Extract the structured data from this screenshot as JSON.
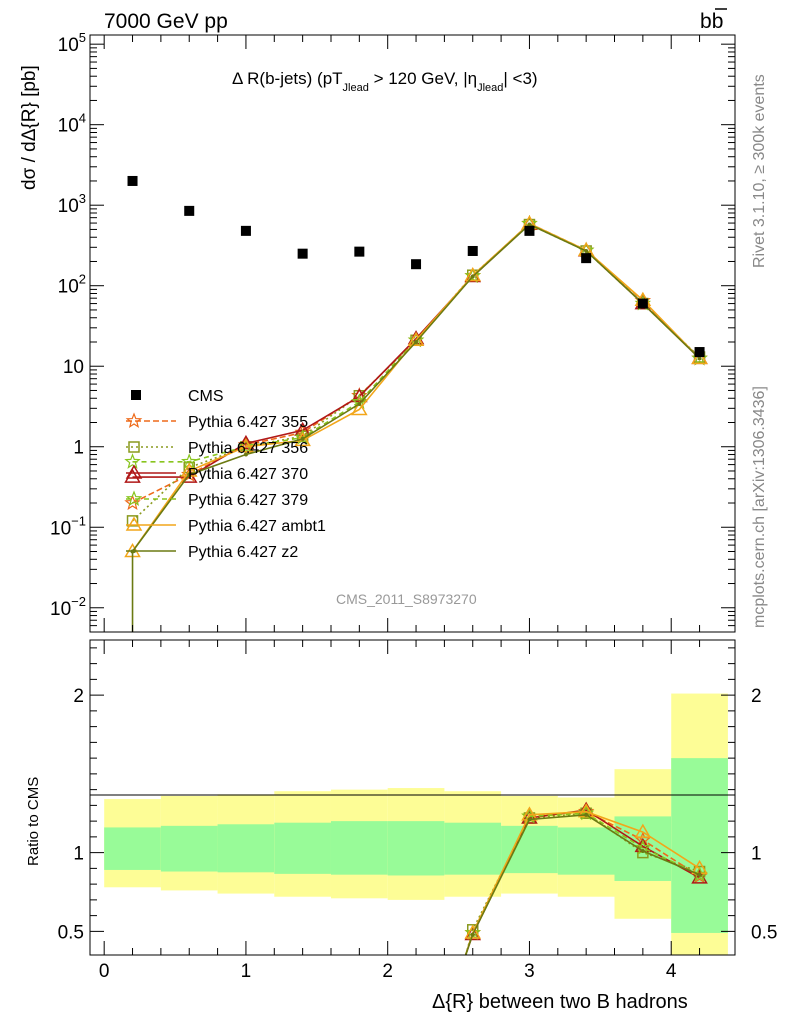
{
  "header": {
    "left": "7000 GeV pp",
    "right": "b",
    "right_bar": "b"
  },
  "chart_data": [
    {
      "type": "line",
      "title": "Δ R(b-jets) (pT",
      "title_parts": {
        "main": "Δ R(b-jets) (pT",
        "sub1": "Jlead",
        "mid": " >  120 GeV, |η",
        "sub2": "Jlead",
        "end": "| <3)"
      },
      "ylabel": "dσ / dΔ{R} [pb]",
      "y_scale": "log",
      "ylim": [
        0.005,
        130000
      ],
      "xlim": [
        -0.1,
        4.45
      ],
      "y_ticks": [
        {
          "v": 0.01,
          "label": "10",
          "exp": "−2"
        },
        {
          "v": 0.1,
          "label": "10",
          "exp": "−1"
        },
        {
          "v": 1,
          "label": "1",
          "exp": ""
        },
        {
          "v": 10,
          "label": "10",
          "exp": ""
        },
        {
          "v": 100,
          "label": "10",
          "exp": "2"
        },
        {
          "v": 1000,
          "label": "10",
          "exp": "3"
        },
        {
          "v": 10000,
          "label": "10",
          "exp": "4"
        },
        {
          "v": 100000,
          "label": "10",
          "exp": "5"
        }
      ],
      "x": [
        0.2,
        0.6,
        1.0,
        1.4,
        1.8,
        2.2,
        2.6,
        3.0,
        3.4,
        3.8,
        4.2
      ],
      "cms": [
        2000,
        850,
        480,
        250,
        265,
        185,
        270,
        480,
        220,
        60,
        15
      ],
      "series": [
        {
          "name": "Pythia 6.427 355",
          "color": "#ee6a1a",
          "marker": "star",
          "dash": "6,3",
          "values": [
            0.2,
            0.45,
            1.05,
            1.5,
            4.3,
            21,
            132,
            590,
            275,
            65,
            12.5
          ]
        },
        {
          "name": "Pythia 6.427 356",
          "color": "#8a9a1e",
          "marker": "square",
          "dash": "2,3",
          "values": [
            0.12,
            0.55,
            1.0,
            1.35,
            4.3,
            21,
            135,
            575,
            270,
            60,
            13
          ]
        },
        {
          "name": "Pythia 6.427 370",
          "color": "#b01818",
          "marker": "triangle",
          "dash": "",
          "values": [
            0.42,
            0.42,
            1.1,
            1.6,
            4.2,
            22,
            130,
            580,
            272,
            60,
            12.5
          ]
        },
        {
          "name": "Pythia 6.427 379",
          "color": "#88c41e",
          "marker": "star",
          "dash": "5,4",
          "values": [
            0.65,
            0.65,
            1.0,
            1.3,
            3.6,
            21,
            132,
            590,
            275,
            60,
            12.5
          ]
        },
        {
          "name": "Pythia 6.427 ambt1",
          "color": "#f2a61a",
          "marker": "triangle",
          "dash": "",
          "values": [
            0.05,
            0.5,
            1.0,
            1.2,
            2.9,
            21,
            134,
            590,
            275,
            66,
            12.5
          ]
        },
        {
          "name": "Pythia 6.427 z2",
          "color": "#6b7a12",
          "marker": "dot",
          "dash": "",
          "values": [
            0.05,
            0.45,
            0.8,
            1.25,
            3.4,
            20,
            130,
            575,
            270,
            60,
            12.5
          ]
        }
      ],
      "legend_data_label": "CMS",
      "analysis_label": "CMS_2011_S8973270"
    },
    {
      "type": "line",
      "ylabel": "Ratio to CMS",
      "xlabel": "Δ{R} between two B hadrons",
      "ylim": [
        0.35,
        2.35
      ],
      "y_ticks": [
        {
          "v": 0.5,
          "label": "0.5"
        },
        {
          "v": 1,
          "label": "1"
        },
        {
          "v": 2,
          "label": "2"
        }
      ],
      "x_ticks": [
        {
          "v": 0,
          "label": "0"
        },
        {
          "v": 1,
          "label": "1"
        },
        {
          "v": 2,
          "label": "2"
        },
        {
          "v": 3,
          "label": "3"
        },
        {
          "v": 4,
          "label": "4"
        }
      ],
      "bins": [
        [
          0.0,
          0.4
        ],
        [
          0.4,
          0.8
        ],
        [
          0.8,
          1.2
        ],
        [
          1.2,
          1.6
        ],
        [
          1.6,
          2.0
        ],
        [
          2.0,
          2.4
        ],
        [
          2.4,
          2.8
        ],
        [
          2.8,
          3.2
        ],
        [
          3.2,
          3.6
        ],
        [
          3.6,
          4.0
        ],
        [
          4.0,
          4.4
        ]
      ],
      "band_green": [
        [
          0.89,
          1.16
        ],
        [
          0.88,
          1.17
        ],
        [
          0.875,
          1.18
        ],
        [
          0.865,
          1.19
        ],
        [
          0.86,
          1.2
        ],
        [
          0.855,
          1.2
        ],
        [
          0.86,
          1.19
        ],
        [
          0.87,
          1.17
        ],
        [
          0.86,
          1.16
        ],
        [
          0.82,
          1.23
        ],
        [
          0.49,
          1.6
        ]
      ],
      "band_yellow": [
        [
          0.78,
          1.34
        ],
        [
          0.76,
          1.36
        ],
        [
          0.74,
          1.37
        ],
        [
          0.72,
          1.39
        ],
        [
          0.71,
          1.4
        ],
        [
          0.7,
          1.41
        ],
        [
          0.72,
          1.39
        ],
        [
          0.74,
          1.36
        ],
        [
          0.72,
          1.35
        ],
        [
          0.58,
          1.53
        ],
        [
          0.3,
          2.01
        ]
      ],
      "ratio_x": [
        2.6,
        3.0,
        3.4,
        3.8,
        4.2
      ],
      "ratio_series": [
        {
          "values": [
            0.49,
            1.23,
            1.26,
            1.08,
            0.85
          ]
        },
        {
          "values": [
            0.51,
            1.22,
            1.25,
            1.0,
            0.88
          ]
        },
        {
          "values": [
            0.48,
            1.22,
            1.27,
            1.04,
            0.84
          ]
        },
        {
          "values": [
            0.49,
            1.23,
            1.25,
            1.03,
            0.86
          ]
        },
        {
          "values": [
            0.49,
            1.24,
            1.26,
            1.13,
            0.9
          ]
        },
        {
          "values": [
            0.48,
            1.21,
            1.24,
            1.01,
            0.86
          ]
        }
      ]
    }
  ],
  "side_labels": {
    "rivet": "Rivet 3.1.10, ≥ 300k events",
    "mcplots": "mcplots.cern.ch [arXiv:1306.3436]"
  }
}
